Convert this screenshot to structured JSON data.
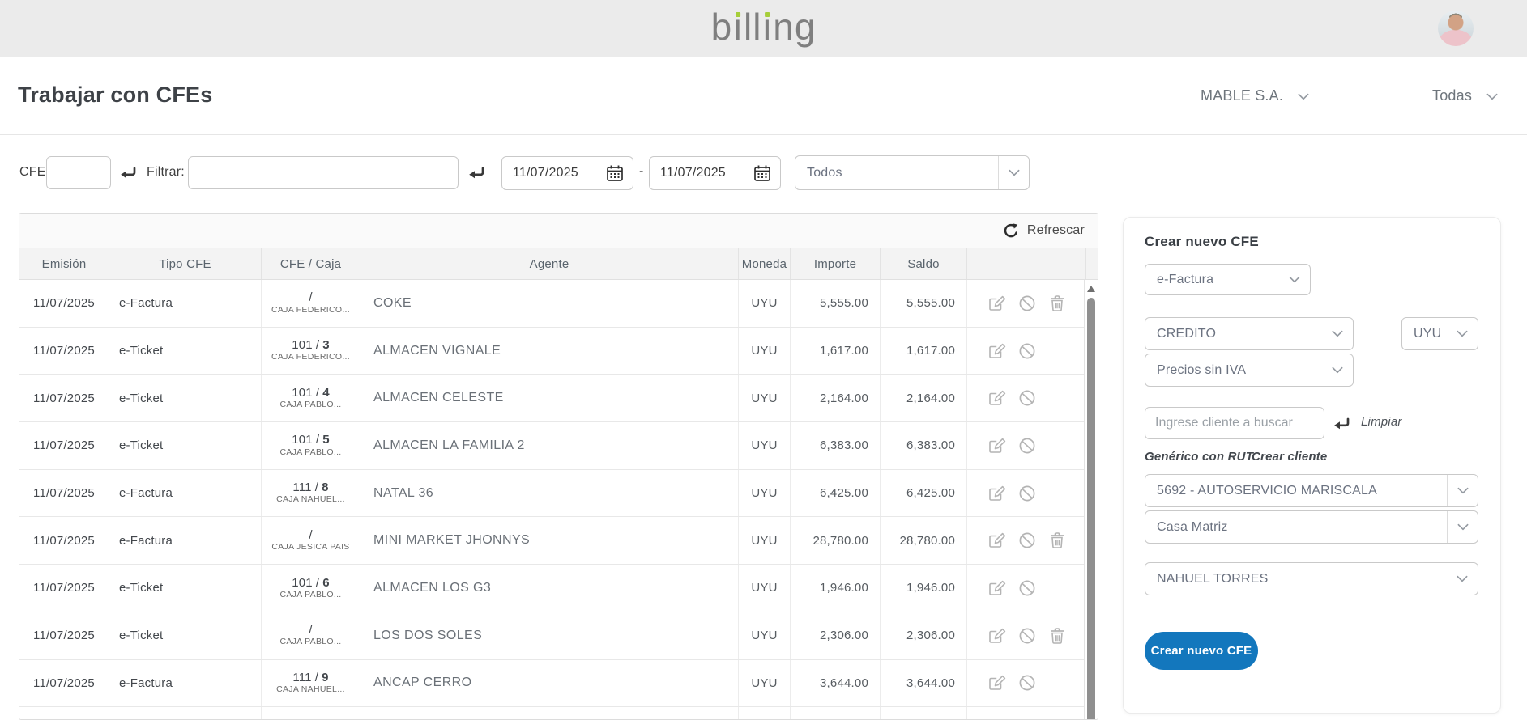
{
  "app": {
    "logo_text": "billing",
    "logo_color": "#7f7f7f",
    "logo_dot_color": "#a6ce39"
  },
  "header": {
    "title": "Trabajar con CFEs",
    "company_selector": "MABLE S.A.",
    "view_selector": "Todas"
  },
  "filters": {
    "cfe_label": "CFE:",
    "cfe_value": "",
    "filter_label": "Filtrar:",
    "filter_value": "",
    "date_from": "11/07/2025",
    "date_range_separator": "-",
    "date_to": "11/07/2025",
    "status_select": "Todos"
  },
  "table": {
    "refresh_label": "Refrescar",
    "columns": [
      "Emisión",
      "Tipo CFE",
      "CFE / Caja",
      "Agente",
      "Moneda",
      "Importe",
      "Saldo",
      ""
    ],
    "cfe_separator": "/",
    "rows": [
      {
        "emision": "11/07/2025",
        "tipo": "e-Factura",
        "cfe_num": "",
        "cfe_seq": "",
        "caja": "CAJA FEDERICO...",
        "agente": "COKE",
        "moneda": "UYU",
        "importe": "5,555.00",
        "saldo": "5,555.00",
        "can_delete": true
      },
      {
        "emision": "11/07/2025",
        "tipo": "e-Ticket",
        "cfe_num": "101",
        "cfe_seq": "3",
        "caja": "CAJA FEDERICO...",
        "agente": "ALMACEN VIGNALE",
        "moneda": "UYU",
        "importe": "1,617.00",
        "saldo": "1,617.00",
        "can_delete": false
      },
      {
        "emision": "11/07/2025",
        "tipo": "e-Ticket",
        "cfe_num": "101",
        "cfe_seq": "4",
        "caja": "CAJA PABLO...",
        "agente": "ALMACEN CELESTE",
        "moneda": "UYU",
        "importe": "2,164.00",
        "saldo": "2,164.00",
        "can_delete": false
      },
      {
        "emision": "11/07/2025",
        "tipo": "e-Ticket",
        "cfe_num": "101",
        "cfe_seq": "5",
        "caja": "CAJA PABLO...",
        "agente": "ALMACEN LA FAMILIA 2",
        "moneda": "UYU",
        "importe": "6,383.00",
        "saldo": "6,383.00",
        "can_delete": false
      },
      {
        "emision": "11/07/2025",
        "tipo": "e-Factura",
        "cfe_num": "111",
        "cfe_seq": "8",
        "caja": "CAJA NAHUEL...",
        "agente": "NATAL 36",
        "moneda": "UYU",
        "importe": "6,425.00",
        "saldo": "6,425.00",
        "can_delete": false
      },
      {
        "emision": "11/07/2025",
        "tipo": "e-Factura",
        "cfe_num": "",
        "cfe_seq": "",
        "caja": "CAJA JESICA PAIS",
        "agente": "MINI MARKET JHONNYS",
        "moneda": "UYU",
        "importe": "28,780.00",
        "saldo": "28,780.00",
        "can_delete": true
      },
      {
        "emision": "11/07/2025",
        "tipo": "e-Ticket",
        "cfe_num": "101",
        "cfe_seq": "6",
        "caja": "CAJA PABLO...",
        "agente": "ALMACEN LOS G3",
        "moneda": "UYU",
        "importe": "1,946.00",
        "saldo": "1,946.00",
        "can_delete": false
      },
      {
        "emision": "11/07/2025",
        "tipo": "e-Ticket",
        "cfe_num": "",
        "cfe_seq": "",
        "caja": "CAJA PABLO...",
        "agente": "LOS DOS SOLES",
        "moneda": "UYU",
        "importe": "2,306.00",
        "saldo": "2,306.00",
        "can_delete": true
      },
      {
        "emision": "11/07/2025",
        "tipo": "e-Factura",
        "cfe_num": "111",
        "cfe_seq": "9",
        "caja": "CAJA NAHUEL...",
        "agente": "ANCAP CERRO",
        "moneda": "UYU",
        "importe": "3,644.00",
        "saldo": "3,644.00",
        "can_delete": false
      },
      {
        "emision": "",
        "tipo": "",
        "cfe_num": "",
        "cfe_seq": "",
        "caja": "",
        "agente": "",
        "moneda": "",
        "importe": "",
        "saldo": "",
        "can_delete": true
      }
    ]
  },
  "panel": {
    "title": "Crear nuevo CFE",
    "doc_type_select": "e-Factura",
    "payment_select": "CREDITO",
    "currency_select": "UYU",
    "price_mode_select": "Precios sin IVA",
    "search_placeholder": "Ingrese cliente a buscar",
    "clear_link": "Limpiar",
    "generic_rut_link": "Genérico con RUT",
    "create_client_link": "Crear cliente",
    "client_select": "5692 -  AUTOSERVICIO MARISCALA",
    "branch_select": "Casa Matriz",
    "seller_select": "NAHUEL TORRES",
    "submit_button": "Crear nuevo CFE"
  },
  "colors": {
    "accent_blue": "#1377bd",
    "logo_green": "#a6ce39",
    "topbar_gray": "#ebebeb"
  },
  "icons": {
    "enter-icon": "↵",
    "calendar-icon": "calendar glyph",
    "chevron-down-icon": "∨",
    "refresh-icon": "↻",
    "edit-icon": "pencil on square",
    "ban-icon": "circle with slash",
    "trash-icon": "trash can",
    "scroll-up-icon": "▲"
  }
}
